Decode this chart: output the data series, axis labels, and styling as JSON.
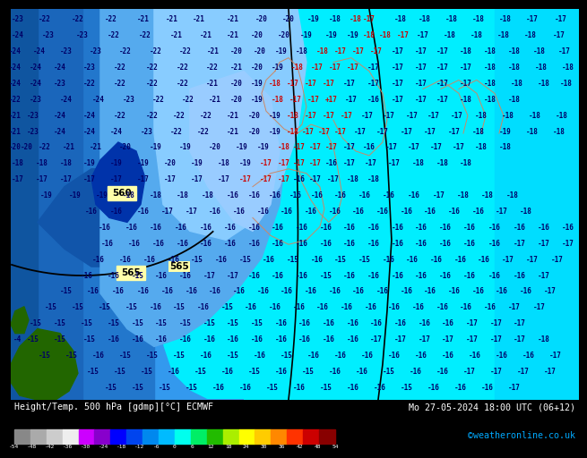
{
  "title_left": "Height/Temp. 500 hPa [gdmp][°C] ECMWF",
  "title_right": "Mo 27-05-2024 18:00 UTC (06+12)",
  "credit": "©weatheronline.co.uk",
  "colorbar_ticks": [
    -54,
    -48,
    -42,
    -36,
    -30,
    -24,
    -18,
    -12,
    -6,
    0,
    6,
    12,
    18,
    24,
    30,
    36,
    42,
    48,
    54
  ],
  "map_bg": "#00eeff",
  "blue_dark": "#0044bb",
  "blue_mid": "#2288ee",
  "blue_light": "#44aaff",
  "cyan_main": "#00ccff",
  "cyan_light": "#00eeff",
  "footer_bg": "#000000",
  "text_color_left": "#ffffff",
  "text_color_right": "#ffffff",
  "text_color_credit": "#00aaff",
  "label_dark": "#000066",
  "label_red": "#cc0000",
  "colorbar_colors": [
    "#888888",
    "#aaaaaa",
    "#cccccc",
    "#eeeeee",
    "#cc00ff",
    "#8800cc",
    "#0000ff",
    "#0044ee",
    "#0088ee",
    "#00bbff",
    "#00ffee",
    "#00ee66",
    "#22bb00",
    "#aaee00",
    "#ffff00",
    "#ffcc00",
    "#ff8800",
    "#ff3300",
    "#cc0000",
    "#880000"
  ]
}
